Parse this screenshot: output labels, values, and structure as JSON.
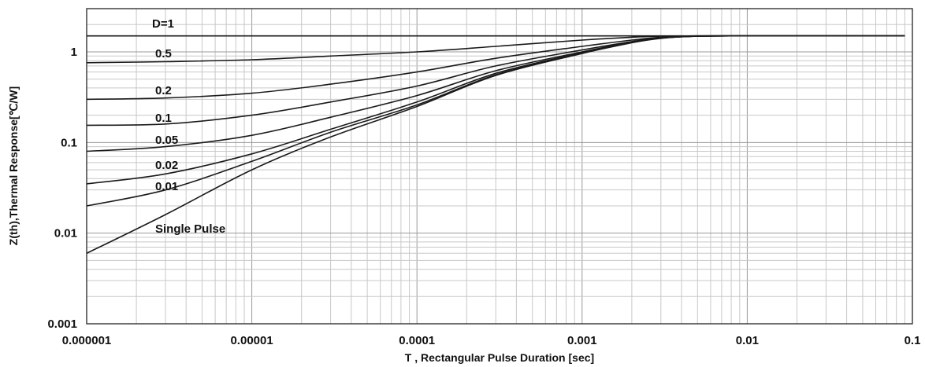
{
  "chart_data": {
    "type": "line",
    "xlabel": "T , Rectangular Pulse Duration [sec]",
    "ylabel": "Z(th),Thermal Response[℃/W]",
    "xscale": "log",
    "yscale": "log",
    "xlim": [
      1e-06,
      0.1
    ],
    "ylim": [
      0.001,
      3
    ],
    "grid": true,
    "x_tick_labels": [
      "0.000001",
      "0.00001",
      "0.0001",
      "0.001",
      "0.01",
      "0.1"
    ],
    "y_tick_labels": [
      "1",
      "0.1",
      "0.01",
      "0.001"
    ],
    "x": [
      1e-06,
      3e-06,
      1e-05,
      3e-05,
      0.0001,
      0.0003,
      0.001,
      0.002,
      0.003,
      0.005,
      0.01,
      0.03,
      0.09
    ],
    "series": [
      {
        "name": "D=1",
        "values": [
          1.5,
          1.5,
          1.5,
          1.5,
          1.5,
          1.5,
          1.5,
          1.5,
          1.5,
          1.5,
          1.5,
          1.5,
          1.5
        ]
      },
      {
        "name": "0.5",
        "values": [
          0.76,
          0.78,
          0.82,
          0.9,
          1.0,
          1.15,
          1.35,
          1.45,
          1.49,
          1.5,
          1.5,
          1.5,
          1.5
        ]
      },
      {
        "name": "0.2",
        "values": [
          0.3,
          0.31,
          0.35,
          0.44,
          0.6,
          0.85,
          1.15,
          1.35,
          1.45,
          1.5,
          1.5,
          1.5,
          1.5
        ]
      },
      {
        "name": "0.1",
        "values": [
          0.155,
          0.16,
          0.2,
          0.28,
          0.42,
          0.7,
          1.05,
          1.3,
          1.43,
          1.49,
          1.5,
          1.5,
          1.5
        ]
      },
      {
        "name": "0.05",
        "values": [
          0.08,
          0.09,
          0.12,
          0.19,
          0.33,
          0.62,
          1.0,
          1.28,
          1.42,
          1.49,
          1.5,
          1.5,
          1.5
        ]
      },
      {
        "name": "0.02",
        "values": [
          0.035,
          0.045,
          0.075,
          0.14,
          0.28,
          0.58,
          0.98,
          1.27,
          1.42,
          1.49,
          1.5,
          1.5,
          1.5
        ]
      },
      {
        "name": "0.01",
        "values": [
          0.02,
          0.03,
          0.062,
          0.13,
          0.26,
          0.56,
          0.97,
          1.27,
          1.42,
          1.49,
          1.5,
          1.5,
          1.5
        ]
      },
      {
        "name": "Single Pulse",
        "values": [
          0.006,
          0.016,
          0.05,
          0.115,
          0.25,
          0.55,
          0.96,
          1.26,
          1.41,
          1.49,
          1.5,
          1.5,
          1.5
        ]
      }
    ]
  }
}
